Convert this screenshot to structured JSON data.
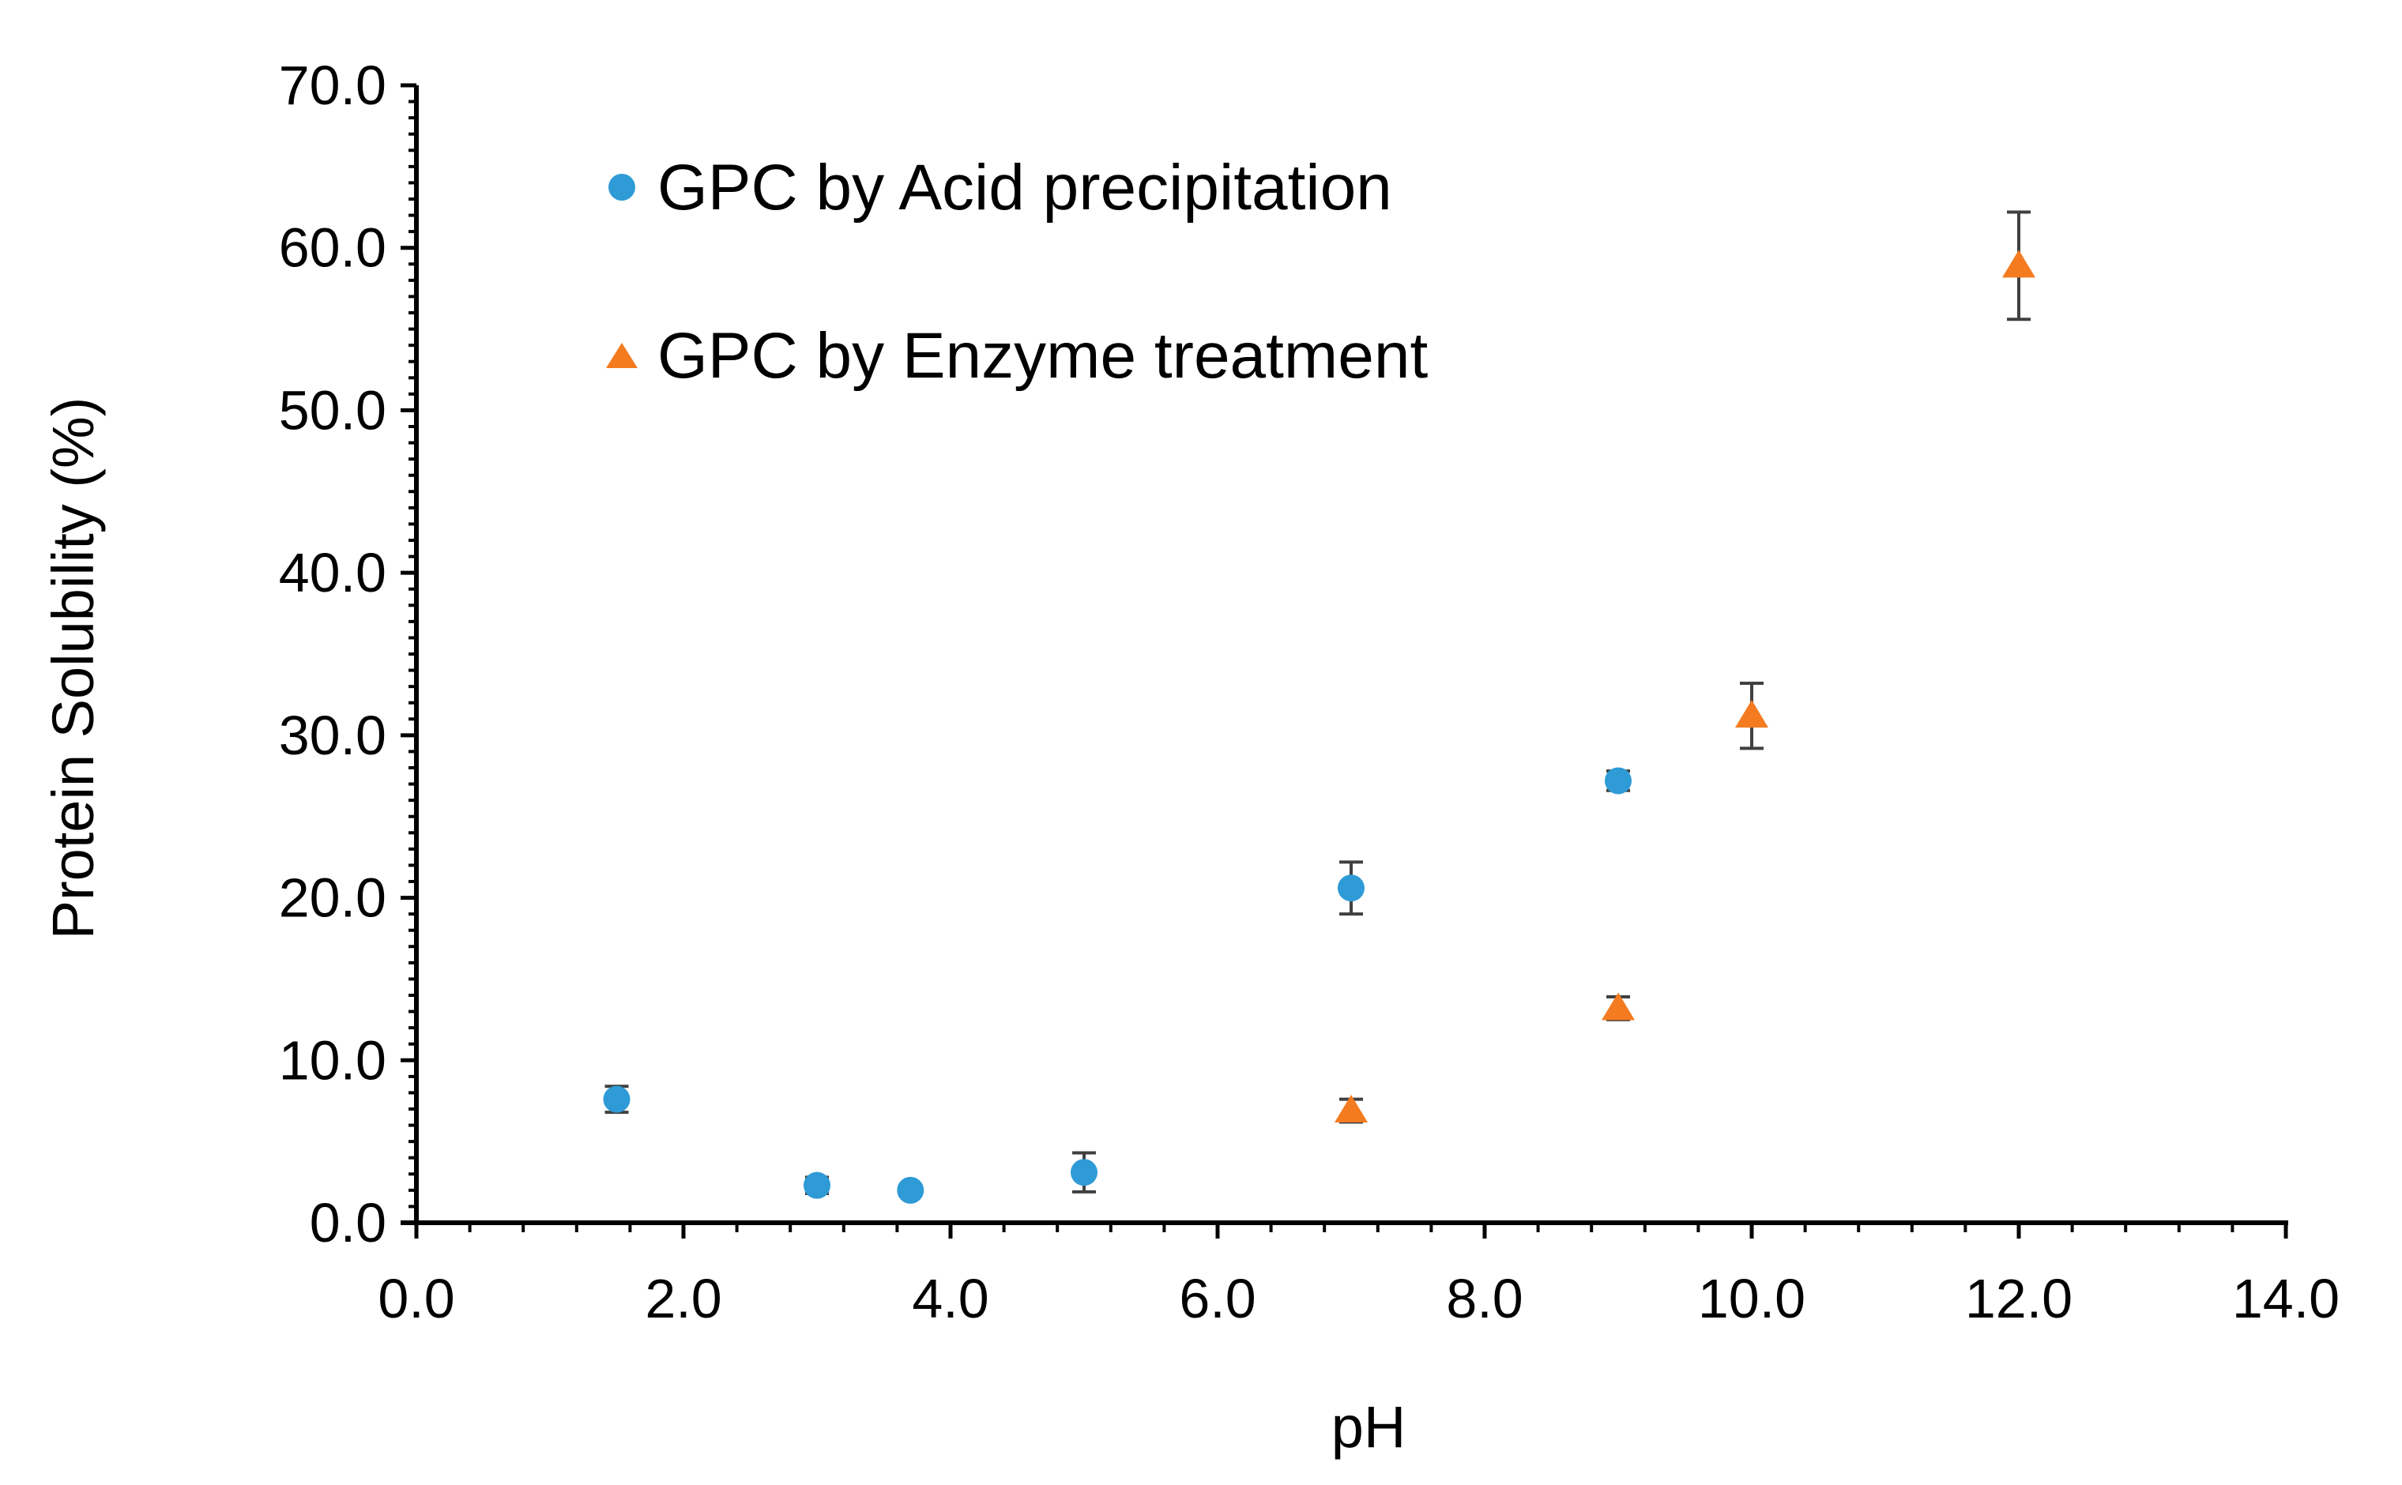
{
  "chart_data": {
    "type": "scatter",
    "title": "",
    "xlabel": "pH",
    "ylabel": "Protein Solubility  (%)",
    "xlim": [
      0,
      14
    ],
    "ylim": [
      0,
      70
    ],
    "x_ticks": [
      0,
      2,
      4,
      6,
      8,
      10,
      12,
      14
    ],
    "x_tick_labels": [
      "0.0",
      "2.0",
      "4.0",
      "6.0",
      "8.0",
      "10.0",
      "12.0",
      "14.0"
    ],
    "y_ticks": [
      0,
      10,
      20,
      30,
      40,
      50,
      60,
      70
    ],
    "y_tick_labels": [
      "0.0",
      "10.0",
      "20.0",
      "30.0",
      "40.0",
      "50.0",
      "60.0",
      "70.0"
    ],
    "grid": false,
    "legend_position": "top-left",
    "series": [
      {
        "name": "GPC by Acid precipitation",
        "marker": "circle",
        "color": "#2E9BD6",
        "x": [
          1.5,
          3.0,
          3.7,
          5.0,
          7.0,
          9.0
        ],
        "y": [
          7.6,
          2.3,
          2.0,
          3.1,
          20.6,
          27.2
        ],
        "err": [
          0.8,
          0.5,
          0.3,
          1.2,
          1.6,
          0.6
        ]
      },
      {
        "name": "GPC by Enzyme treatment",
        "marker": "triangle",
        "color": "#F47B20",
        "x": [
          7.0,
          9.0,
          10.0,
          12.0
        ],
        "y": [
          6.9,
          13.2,
          31.2,
          58.9
        ],
        "err": [
          0.7,
          0.7,
          2.0,
          3.3
        ]
      }
    ]
  },
  "colors": {
    "axis": "#000000",
    "error_bar": "#404040"
  }
}
